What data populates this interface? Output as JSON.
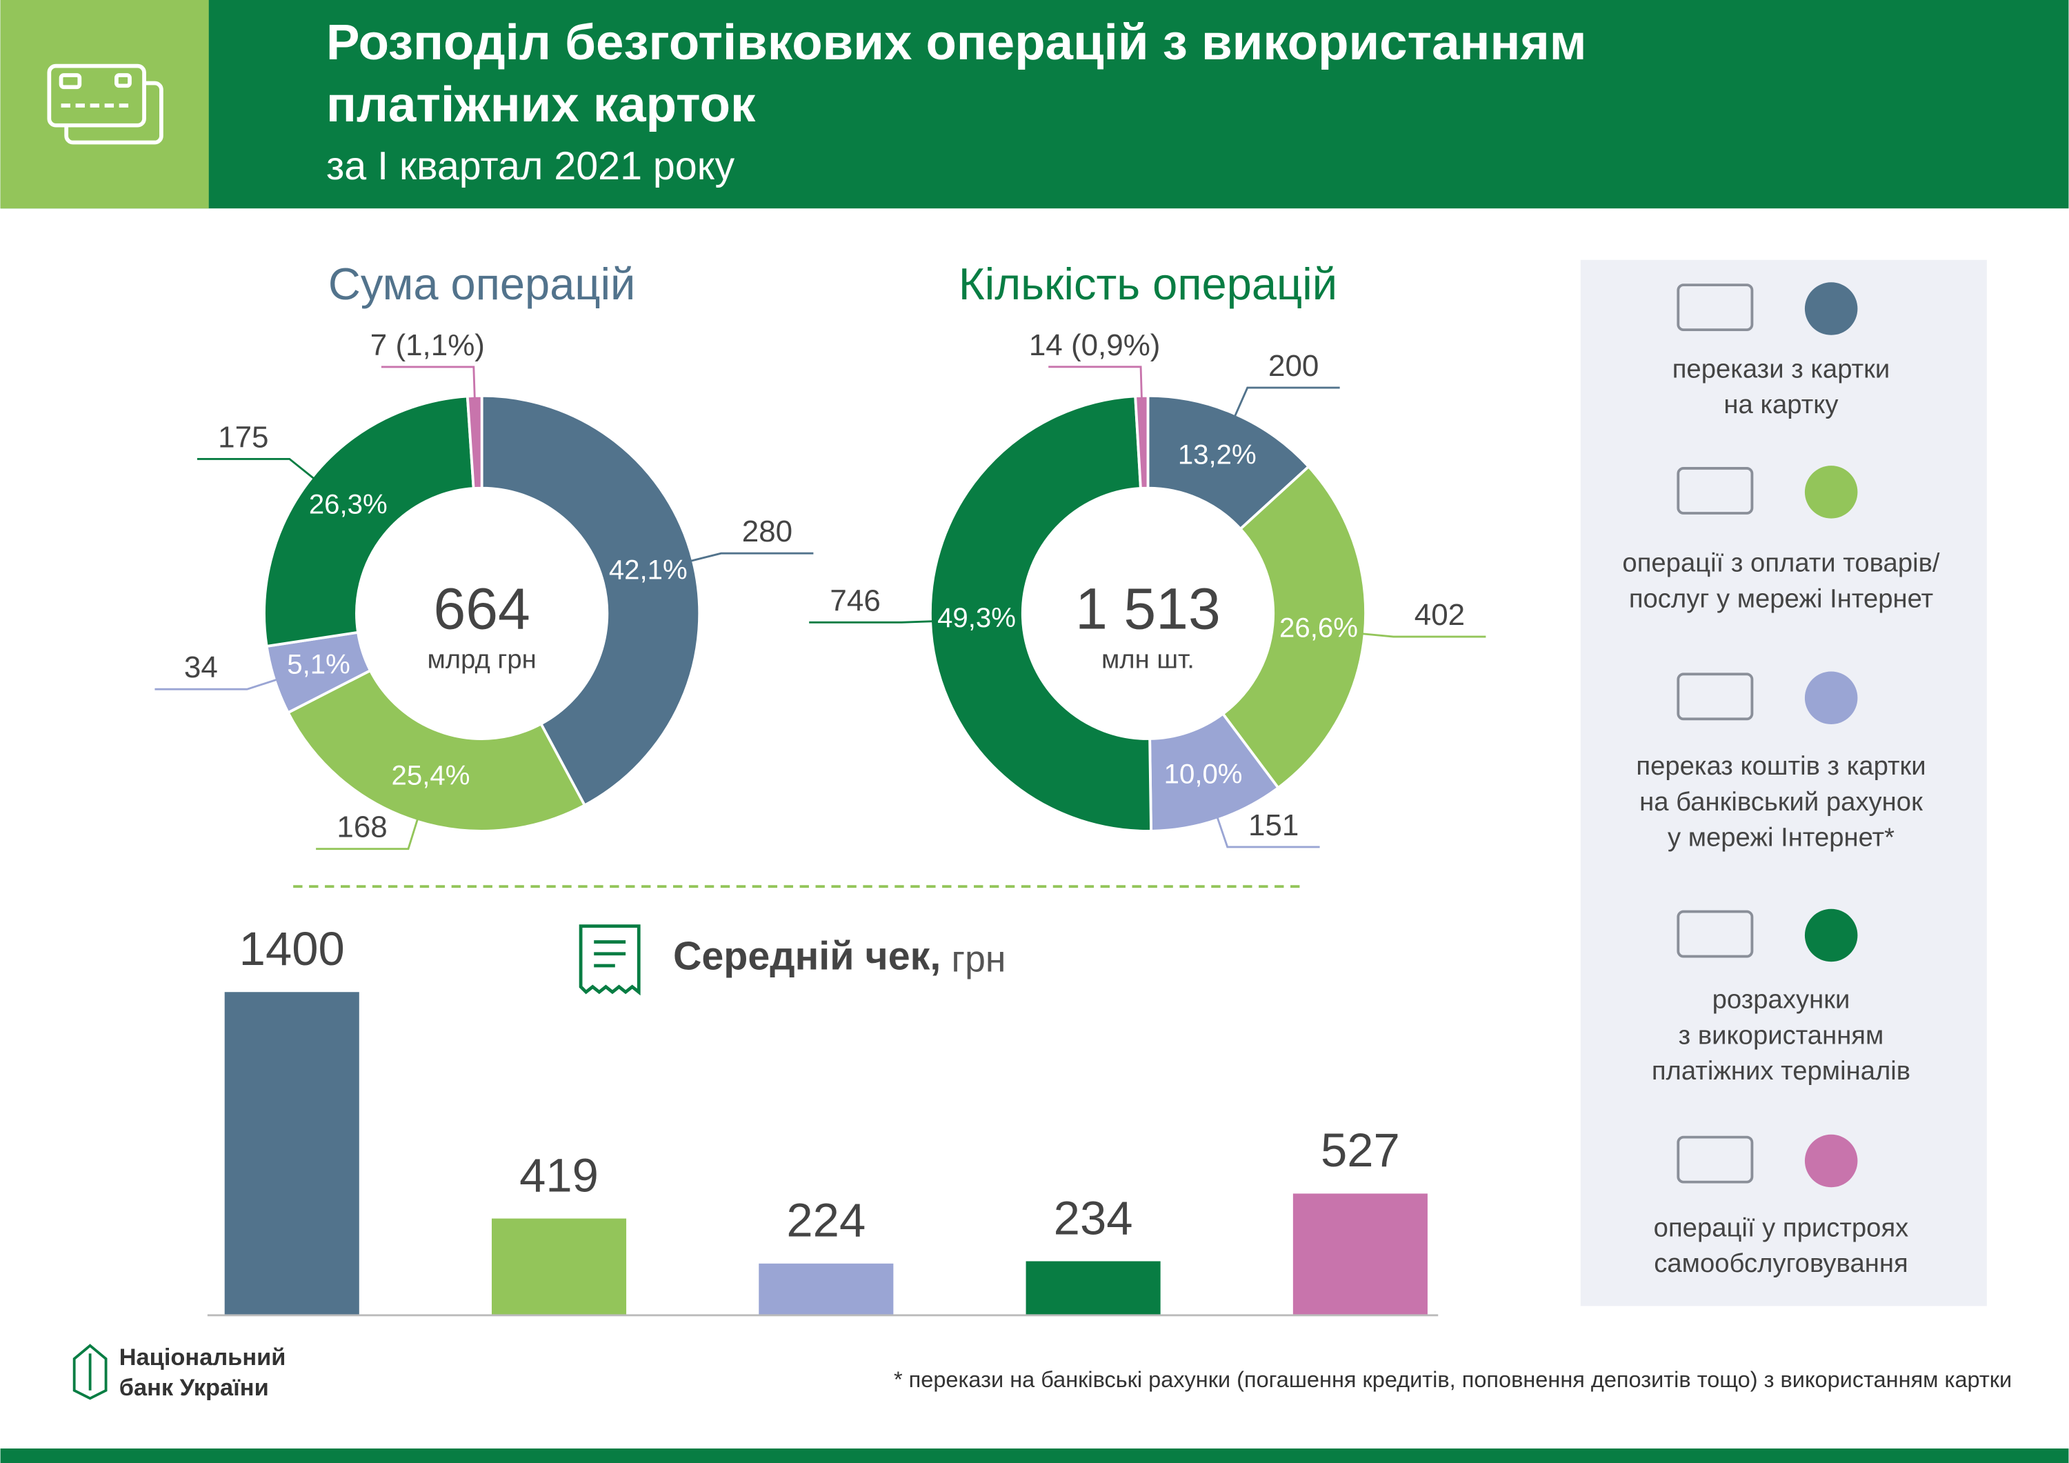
{
  "header": {
    "title_lines": [
      "Розподіл безготівкових операцій з використанням",
      "платіжних карток"
    ],
    "subtitle": "за I квартал 2021 року"
  },
  "chart_data": [
    {
      "type": "donut",
      "title": "Сума операцій",
      "center_label": "664",
      "center_unit": "млрд грн",
      "values": [
        280,
        168,
        34,
        175,
        7
      ],
      "value_labels": [
        "280",
        "168",
        "34",
        "175",
        "7 (1,1%)"
      ],
      "share_labels": [
        "42,1%",
        "25,4%",
        "5,1%",
        "26,3%",
        null
      ],
      "colors": [
        "#52738c",
        "#93c55a",
        "#9aa5d4",
        "#087d43",
        "#c874ac"
      ],
      "title_color": "#52738c"
    },
    {
      "type": "donut",
      "title": "Кількість операцій",
      "center_label": "1 513",
      "center_unit": "млн шт.",
      "values": [
        200,
        402,
        151,
        746,
        14
      ],
      "value_labels": [
        "200",
        "402",
        "151",
        "746",
        "14 (0,9%)"
      ],
      "share_labels": [
        "13,2%",
        "26,6%",
        "10,0%",
        "49,3%",
        null
      ],
      "colors": [
        "#52738c",
        "#93c55a",
        "#9aa5d4",
        "#087d43",
        "#c874ac"
      ],
      "title_color": "#087d43"
    },
    {
      "type": "bar",
      "title": "Середній чек,",
      "unit": "грн",
      "values": [
        1400,
        419,
        224,
        234,
        527
      ],
      "colors": [
        "#52738c",
        "#93c55a",
        "#9aa5d4",
        "#087d43",
        "#c874ac"
      ]
    }
  ],
  "legend": {
    "items": [
      {
        "lines": [
          "перекази з картки",
          "на картку"
        ],
        "color": "#52738c"
      },
      {
        "lines": [
          "операції з оплати товарів/",
          "послуг у мережі Інтернет"
        ],
        "color": "#93c55a"
      },
      {
        "lines": [
          "переказ коштів з картки",
          "на банківський рахунок",
          "у мережі Інтернет*"
        ],
        "color": "#9aa5d4"
      },
      {
        "lines": [
          "розрахунки",
          "з використанням",
          "платіжних терміналів"
        ],
        "color": "#087d43"
      },
      {
        "lines": [
          "операції у пристроях",
          "самообслуговування"
        ],
        "color": "#c874ac"
      }
    ]
  },
  "logo": {
    "lines": [
      "Національний",
      "банк України"
    ]
  },
  "footnote": "* перекази на банківські рахунки (погашення кредитів, поповнення депозитів тощо) з використанням картки"
}
